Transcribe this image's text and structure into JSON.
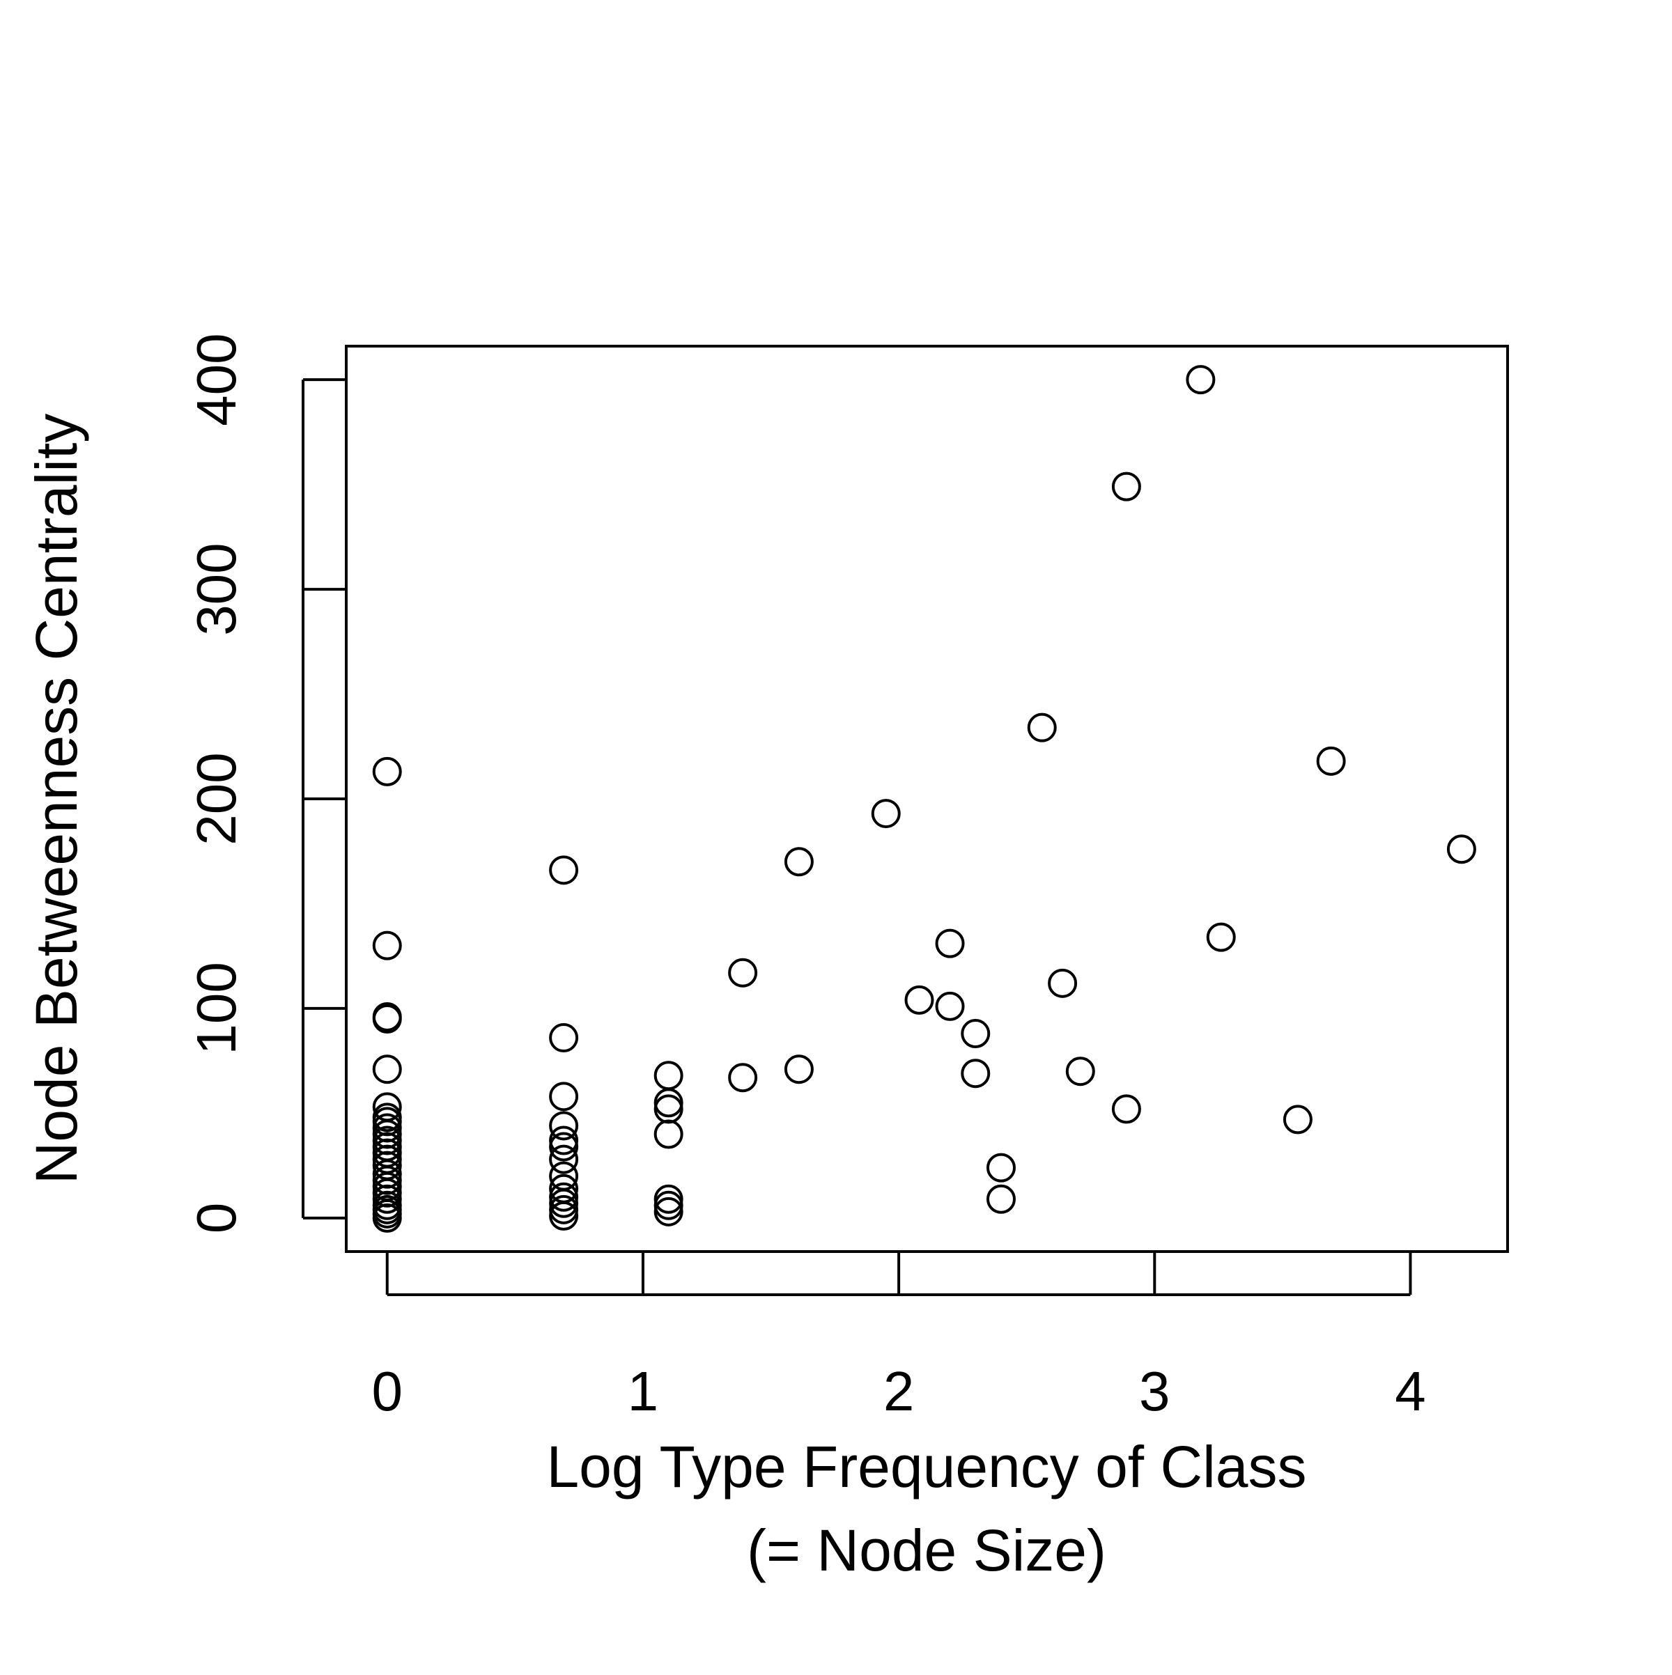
{
  "chart_data": {
    "type": "scatter",
    "title": "",
    "xlabel": "Log Type Frequency of Class",
    "xlabel_line2": "(= Node Size)",
    "ylabel": "Node Betweenness Centrality",
    "xlim": [
      -0.16,
      4.38
    ],
    "ylim": [
      -16,
      416
    ],
    "x_ticks": [
      0,
      1,
      2,
      3,
      4
    ],
    "x_tick_labels": [
      "0",
      "1",
      "2",
      "3",
      "4"
    ],
    "y_ticks": [
      0,
      100,
      200,
      300,
      400
    ],
    "y_tick_labels": [
      "0",
      "100",
      "200",
      "300",
      "400"
    ],
    "grid": false,
    "legend": "none",
    "marker": "open-circle",
    "color": "#000000",
    "points": [
      {
        "x": 0,
        "y": 213
      },
      {
        "x": 0,
        "y": 130
      },
      {
        "x": 0,
        "y": 96
      },
      {
        "x": 0,
        "y": 95
      },
      {
        "x": 0,
        "y": 71
      },
      {
        "x": 0,
        "y": 53
      },
      {
        "x": 0,
        "y": 48
      },
      {
        "x": 0,
        "y": 46
      },
      {
        "x": 0,
        "y": 43
      },
      {
        "x": 0,
        "y": 40
      },
      {
        "x": 0,
        "y": 37
      },
      {
        "x": 0,
        "y": 34
      },
      {
        "x": 0,
        "y": 31
      },
      {
        "x": 0,
        "y": 28
      },
      {
        "x": 0,
        "y": 25
      },
      {
        "x": 0,
        "y": 21
      },
      {
        "x": 0,
        "y": 18
      },
      {
        "x": 0,
        "y": 15
      },
      {
        "x": 0,
        "y": 12
      },
      {
        "x": 0,
        "y": 9
      },
      {
        "x": 0,
        "y": 6
      },
      {
        "x": 0,
        "y": 4
      },
      {
        "x": 0,
        "y": 2
      },
      {
        "x": 0,
        "y": 0
      },
      {
        "x": 0.69,
        "y": 166
      },
      {
        "x": 0.69,
        "y": 86
      },
      {
        "x": 0.69,
        "y": 58
      },
      {
        "x": 0.69,
        "y": 44
      },
      {
        "x": 0.69,
        "y": 37
      },
      {
        "x": 0.69,
        "y": 34
      },
      {
        "x": 0.69,
        "y": 28
      },
      {
        "x": 0.69,
        "y": 20
      },
      {
        "x": 0.69,
        "y": 14
      },
      {
        "x": 0.69,
        "y": 10
      },
      {
        "x": 0.69,
        "y": 7
      },
      {
        "x": 0.69,
        "y": 4
      },
      {
        "x": 0.69,
        "y": 1
      },
      {
        "x": 1.1,
        "y": 68
      },
      {
        "x": 1.1,
        "y": 55
      },
      {
        "x": 1.1,
        "y": 52
      },
      {
        "x": 1.1,
        "y": 40
      },
      {
        "x": 1.1,
        "y": 9
      },
      {
        "x": 1.1,
        "y": 6
      },
      {
        "x": 1.1,
        "y": 3
      },
      {
        "x": 1.39,
        "y": 117
      },
      {
        "x": 1.39,
        "y": 67
      },
      {
        "x": 1.61,
        "y": 170
      },
      {
        "x": 1.61,
        "y": 71
      },
      {
        "x": 1.95,
        "y": 193
      },
      {
        "x": 2.08,
        "y": 104
      },
      {
        "x": 2.2,
        "y": 131
      },
      {
        "x": 2.2,
        "y": 101
      },
      {
        "x": 2.3,
        "y": 88
      },
      {
        "x": 2.3,
        "y": 69
      },
      {
        "x": 2.4,
        "y": 24
      },
      {
        "x": 2.4,
        "y": 9
      },
      {
        "x": 2.56,
        "y": 234
      },
      {
        "x": 2.64,
        "y": 112
      },
      {
        "x": 2.71,
        "y": 70
      },
      {
        "x": 2.89,
        "y": 349
      },
      {
        "x": 2.89,
        "y": 52
      },
      {
        "x": 3.18,
        "y": 400
      },
      {
        "x": 3.26,
        "y": 134
      },
      {
        "x": 3.56,
        "y": 47
      },
      {
        "x": 3.69,
        "y": 218
      },
      {
        "x": 4.2,
        "y": 176
      }
    ]
  }
}
